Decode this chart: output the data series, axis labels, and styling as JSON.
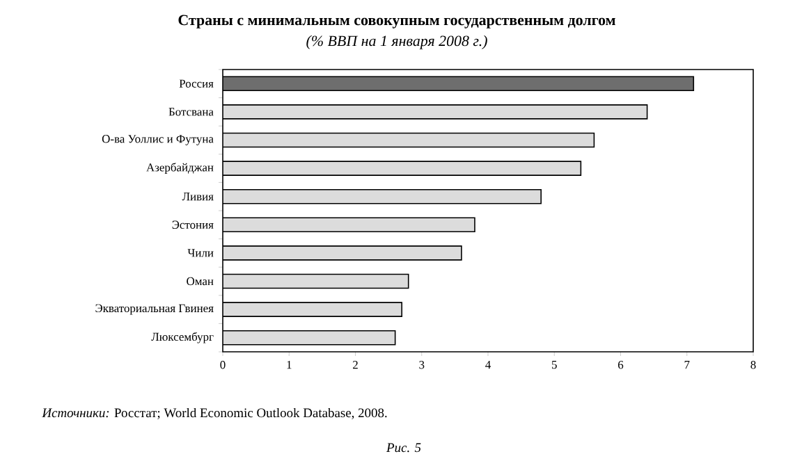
{
  "chart_data": {
    "type": "bar",
    "orientation": "horizontal",
    "title": "Страны с минимальным совокупным государственным долгом",
    "subtitle": "(% ВВП на 1 января 2008 г.)",
    "categories": [
      "Россия",
      "Ботсвана",
      "О-ва Уоллис и  Футуна",
      "Азербайджан",
      "Ливия",
      "Эстония",
      "Чили",
      "Оман",
      "Экваториальная Гвинея",
      "Люксембург"
    ],
    "values": [
      7.1,
      6.4,
      5.6,
      5.4,
      4.8,
      3.8,
      3.6,
      2.8,
      2.7,
      2.6
    ],
    "colors": [
      "#6e6e6e",
      "#dcdcdc",
      "#dcdcdc",
      "#dcdcdc",
      "#dcdcdc",
      "#dcdcdc",
      "#dcdcdc",
      "#dcdcdc",
      "#dcdcdc",
      "#dcdcdc"
    ],
    "xlim": [
      0,
      8
    ],
    "xticks": [
      0,
      1,
      2,
      3,
      4,
      5,
      6,
      7,
      8
    ],
    "annotations": [
      "*Источники:* Росстат; World Economic Outlook Database, 2008.",
      "Рис. 5"
    ]
  }
}
